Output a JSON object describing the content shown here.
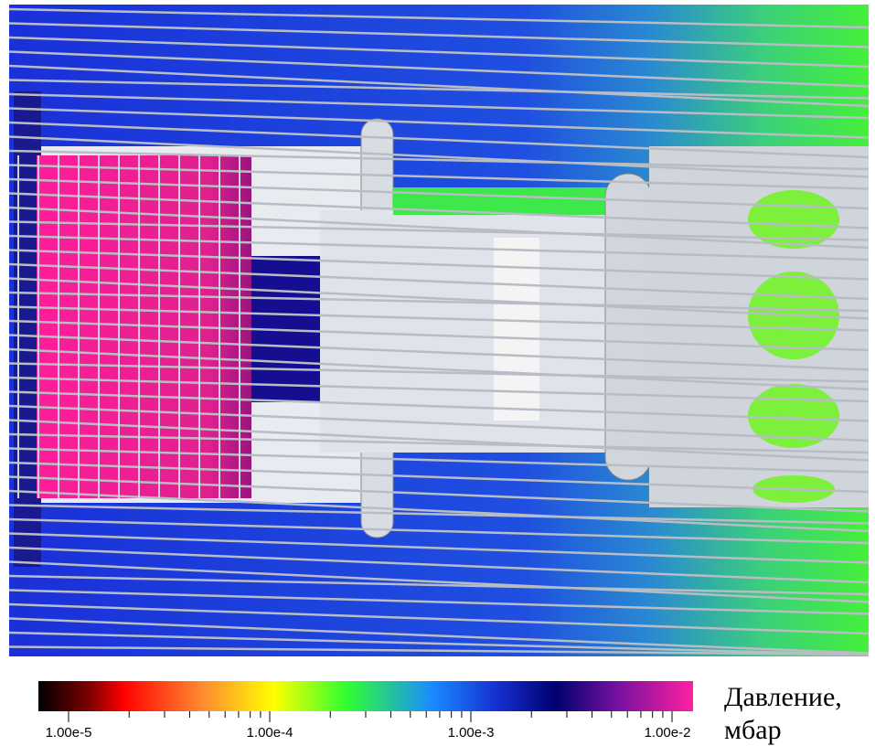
{
  "colorbar": {
    "tick_labels": [
      "1.00e-5",
      "1.00e-4",
      "1.00e-3",
      "1.00e-2"
    ],
    "label": [
      "Давление,",
      "мбар"
    ]
  }
}
